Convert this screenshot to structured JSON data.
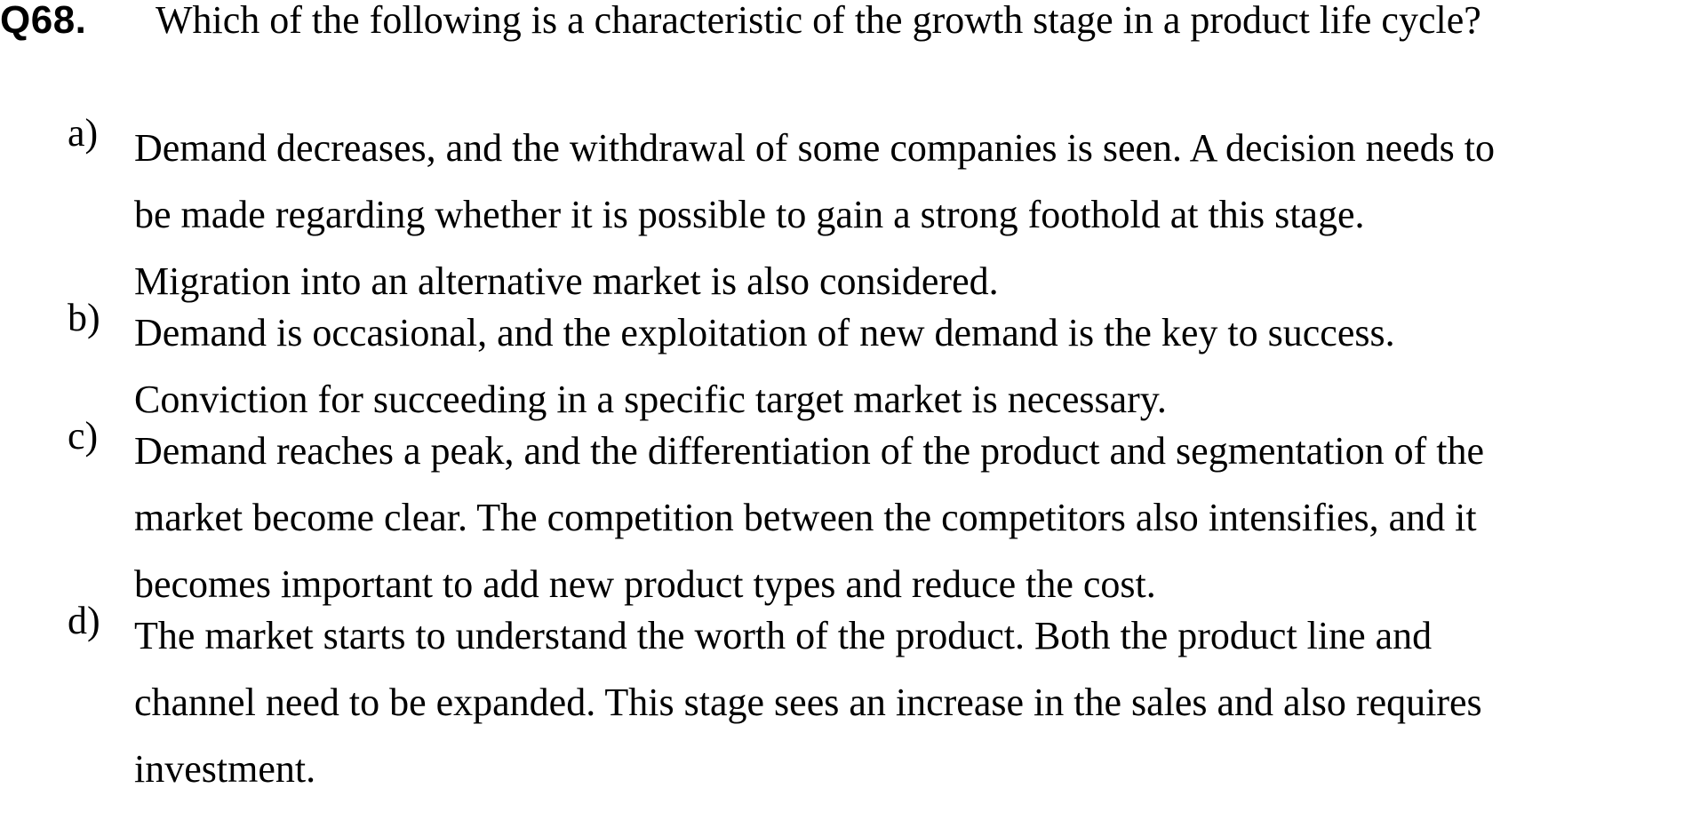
{
  "question": {
    "number": "Q68.",
    "text": "Which of the following is a characteristic of the growth stage in a product life cycle?"
  },
  "options": [
    {
      "letter": "a)",
      "lines": [
        "Demand decreases, and the withdrawal of some companies is seen. A decision needs to",
        "be made regarding whether it is possible to gain a strong foothold at this stage.",
        "Migration into an alternative market is also considered."
      ]
    },
    {
      "letter": "b)",
      "lines": [
        "Demand is occasional, and the exploitation of new demand is the key to success.",
        "Conviction for succeeding in a specific target market is necessary."
      ]
    },
    {
      "letter": "c)",
      "lines": [
        "Demand reaches a peak, and the differentiation of the product and segmentation of the",
        "market become clear. The competition between the competitors also intensifies, and it",
        "becomes important to add new product types and reduce the cost."
      ]
    },
    {
      "letter": "d)",
      "lines": [
        "The market starts to understand the worth of the product. Both the product line and",
        "channel need to be expanded. This stage sees an increase in the sales and also requires",
        "investment."
      ]
    }
  ]
}
